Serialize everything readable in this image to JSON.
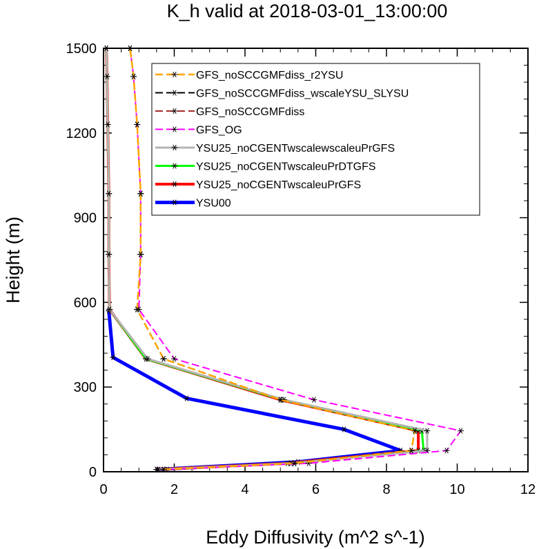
{
  "chart_data": {
    "type": "line",
    "title": "K_h valid at 2018-03-01_13:00:00",
    "xlabel": "Eddy Diffusivity (m^2 s^-1)",
    "ylabel": "Height (m)",
    "xlim": [
      0,
      12
    ],
    "ylim": [
      0,
      1500
    ],
    "xticks": [
      "0",
      "2",
      "4",
      "6",
      "8",
      "10",
      "12"
    ],
    "yticks": [
      "0",
      "300",
      "600",
      "900",
      "1200",
      "1500"
    ],
    "legend_position": "top-right",
    "series": [
      {
        "name": "GFS_noSCCGMFdiss_r2YSU",
        "color": "#ffa500",
        "dash": "dash",
        "width": 2.5,
        "marker": "asterisk",
        "x": [
          1.7,
          5.4,
          8.7,
          8.8,
          5.0,
          1.7,
          0.95,
          1.05,
          1.05,
          0.95,
          0.85,
          0.75
        ],
        "y": [
          8,
          30,
          75,
          145,
          255,
          400,
          575,
          770,
          985,
          1230,
          1400,
          1500
        ]
      },
      {
        "name": "GFS_noSCCGMFdiss_wscaleYSU_SLYSU",
        "color": "#000000",
        "dash": "dash",
        "width": 2,
        "marker": "asterisk",
        "x": [
          1.7,
          5.4,
          8.7,
          8.8,
          5.0,
          1.7,
          0.95,
          1.05,
          1.05,
          0.95,
          0.85,
          0.75
        ],
        "y": [
          8,
          30,
          75,
          145,
          255,
          400,
          575,
          770,
          985,
          1230,
          1400,
          1500
        ]
      },
      {
        "name": "GFS_noSCCGMFdiss",
        "color": "#a52a2a",
        "dash": "dash",
        "width": 2,
        "marker": "asterisk",
        "x": [
          1.7,
          5.4,
          8.7,
          8.8,
          5.0,
          1.7,
          0.95,
          1.05,
          1.05,
          0.95,
          0.85,
          0.75
        ],
        "y": [
          8,
          30,
          75,
          145,
          255,
          400,
          575,
          770,
          985,
          1230,
          1400,
          1500
        ]
      },
      {
        "name": "GFS_OG",
        "color": "#ff00ff",
        "dash": "dash",
        "width": 2,
        "marker": "asterisk",
        "x": [
          1.8,
          5.8,
          9.7,
          10.1,
          5.95,
          2.0,
          1.0,
          1.05,
          1.05,
          0.95,
          0.85,
          0.75
        ],
        "y": [
          8,
          30,
          75,
          145,
          255,
          400,
          575,
          770,
          985,
          1230,
          1400,
          1500
        ]
      },
      {
        "name": "YSU25_noCGENTwscalewscaleuPrGFS",
        "color": "#b4b4b4",
        "dash": "solid",
        "width": 3,
        "marker": "asterisk",
        "x": [
          1.55,
          5.3,
          9.15,
          9.15,
          5.1,
          1.25,
          0.17,
          0.15,
          0.15,
          0.12,
          0.1,
          0.08
        ],
        "y": [
          8,
          30,
          75,
          145,
          255,
          400,
          575,
          770,
          985,
          1230,
          1400,
          1500
        ]
      },
      {
        "name": "YSU25_noCGENTwscaleuPrDTGFS",
        "color": "#00ff00",
        "dash": "solid",
        "width": 3,
        "marker": "asterisk",
        "x": [
          1.55,
          5.3,
          9.05,
          9.0,
          5.05,
          1.2,
          0.17,
          0.15,
          0.15,
          0.12,
          0.1,
          0.08
        ],
        "y": [
          8,
          30,
          75,
          145,
          255,
          400,
          575,
          770,
          985,
          1230,
          1400,
          1500
        ]
      },
      {
        "name": "YSU25_noCGENTwscaleuPrGFS",
        "color": "#ff0000",
        "dash": "solid",
        "width": 4,
        "marker": "asterisk",
        "x": [
          1.5,
          5.2,
          8.9,
          8.9,
          5.0,
          1.2,
          0.17,
          0.15,
          0.15,
          0.12,
          0.1,
          0.08
        ],
        "y": [
          8,
          30,
          75,
          145,
          255,
          400,
          575,
          770,
          985,
          1230,
          1400,
          1500
        ]
      },
      {
        "name": "YSU00",
        "color": "#0000ff",
        "dash": "solid",
        "width": 5,
        "marker": "asterisk",
        "x": [
          1.5,
          5.5,
          8.4,
          6.8,
          2.35,
          0.27,
          0.15
        ],
        "y": [
          8,
          35,
          75,
          150,
          260,
          405,
          570
        ]
      }
    ]
  }
}
